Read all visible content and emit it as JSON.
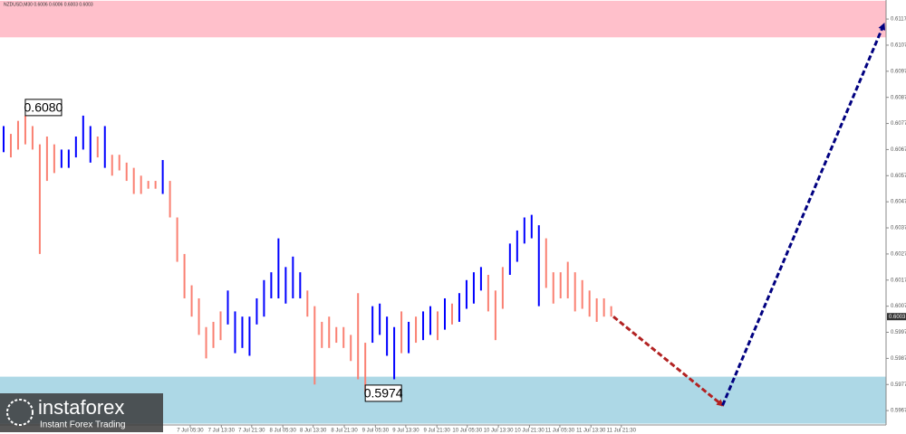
{
  "chart_data": {
    "type": "range-bars",
    "title": "NZDUSD,M30 0.6006 0.6006 0.6003 0.6003",
    "high": [
      0.6076,
      0.6073,
      0.6078,
      0.608,
      0.6076,
      0.6069,
      0.6072,
      0.6069,
      0.6067,
      0.6067,
      0.6072,
      0.608,
      0.6076,
      0.6072,
      0.6076,
      0.6065,
      0.6065,
      0.6062,
      0.606,
      0.6057,
      0.6055,
      0.6055,
      0.6063,
      0.6055,
      0.6041,
      0.6027,
      0.6015,
      0.601,
      0.5999,
      0.6001,
      0.6005,
      0.6013,
      0.6005,
      0.6003,
      0.6003,
      0.601,
      0.6017,
      0.602,
      0.6033,
      0.6022,
      0.6026,
      0.602,
      0.6013,
      0.6007,
      0.6001,
      0.6003,
      0.5999,
      0.5999,
      0.5996,
      0.6012,
      0.5993,
      0.6007,
      0.6008,
      0.6003,
      0.5999,
      0.6005,
      0.6001,
      0.6003,
      0.6005,
      0.6007,
      0.6005,
      0.601,
      0.6008,
      0.6012,
      0.6017,
      0.602,
      0.6022,
      0.6019,
      0.6013,
      0.6022,
      0.6031,
      0.6036,
      0.6041,
      0.6042,
      0.6038,
      0.6033,
      0.602,
      0.602,
      0.6024,
      0.602,
      0.6017,
      0.6013,
      0.601,
      0.601,
      0.6007
    ],
    "low": [
      0.6066,
      0.6064,
      0.6067,
      0.6069,
      0.6067,
      0.6027,
      0.6055,
      0.6058,
      0.606,
      0.606,
      0.6064,
      0.6067,
      0.6062,
      0.6064,
      0.606,
      0.6057,
      0.6059,
      0.6055,
      0.605,
      0.605,
      0.6052,
      0.6052,
      0.605,
      0.6041,
      0.6024,
      0.601,
      0.6003,
      0.5996,
      0.5987,
      0.5991,
      0.5994,
      0.6,
      0.5989,
      0.5991,
      0.5988,
      0.6,
      0.6003,
      0.601,
      0.601,
      0.6008,
      0.601,
      0.601,
      0.6003,
      0.5977,
      0.5991,
      0.5991,
      0.5993,
      0.5991,
      0.5986,
      0.5979,
      0.5974,
      0.5993,
      0.5996,
      0.5988,
      0.5979,
      0.5989,
      0.5989,
      0.5993,
      0.5994,
      0.5996,
      0.5994,
      0.5998,
      0.6,
      0.6001,
      0.6006,
      0.6008,
      0.6013,
      0.6005,
      0.5994,
      0.6006,
      0.6019,
      0.6024,
      0.6031,
      0.6033,
      0.6007,
      0.6014,
      0.6008,
      0.601,
      0.601,
      0.6005,
      0.6006,
      0.6003,
      0.6001,
      0.6003,
      0.6003
    ],
    "colors": [
      "#0000ff",
      "#fa8072",
      "#fa8072",
      "#fa8072",
      "#fa8072",
      "#fa8072",
      "#fa8072",
      "#fa8072",
      "#0000ff",
      "#0000ff",
      "#0000ff",
      "#0000ff",
      "#0000ff",
      "#fa8072",
      "#0000ff",
      "#fa8072",
      "#fa8072",
      "#fa8072",
      "#fa8072",
      "#fa8072",
      "#fa8072",
      "#fa8072",
      "#0000ff",
      "#fa8072",
      "#fa8072",
      "#fa8072",
      "#fa8072",
      "#fa8072",
      "#fa8072",
      "#fa8072",
      "#fa8072",
      "#0000ff",
      "#0000ff",
      "#0000ff",
      "#0000ff",
      "#0000ff",
      "#0000ff",
      "#0000ff",
      "#0000ff",
      "#0000ff",
      "#0000ff",
      "#0000ff",
      "#fa8072",
      "#fa8072",
      "#fa8072",
      "#fa8072",
      "#fa8072",
      "#fa8072",
      "#fa8072",
      "#fa8072",
      "#fa8072",
      "#0000ff",
      "#0000ff",
      "#0000ff",
      "#0000ff",
      "#fa8072",
      "#0000ff",
      "#fa8072",
      "#0000ff",
      "#0000ff",
      "#fa8072",
      "#0000ff",
      "#fa8072",
      "#0000ff",
      "#0000ff",
      "#0000ff",
      "#0000ff",
      "#fa8072",
      "#fa8072",
      "#fa8072",
      "#0000ff",
      "#0000ff",
      "#0000ff",
      "#0000ff",
      "#0000ff",
      "#fa8072",
      "#fa8072",
      "#fa8072",
      "#fa8072",
      "#fa8072",
      "#fa8072",
      "#fa8072",
      "#fa8072",
      "#fa8072",
      "#fa8072"
    ],
    "zones": [
      {
        "from": 0.611,
        "to": 0.6124,
        "color": "#ffc0cb"
      },
      {
        "from": 0.5962,
        "to": 0.598,
        "color": "#add8e6"
      }
    ],
    "arrows": [
      {
        "x": [
          84.8,
          99.9
        ],
        "y": [
          0.6003,
          0.5969
        ],
        "color": "#b22222"
      },
      {
        "x": [
          99.9,
          122.2
        ],
        "y": [
          0.5969,
          0.6115
        ],
        "color": "#000080"
      }
    ],
    "annotations": [
      {
        "x": 3.5,
        "value": 0.608,
        "label": "0.6080"
      },
      {
        "x": 50.5,
        "value": 0.5974,
        "label": "0.5974"
      }
    ],
    "current_price": 0.6003,
    "xlim": [
      0,
      122.5
    ],
    "ylim": [
      0.59615,
      0.61243
    ],
    "xticks": [
      {
        "value": 26.3,
        "label": "7 Jul 05:30"
      },
      {
        "value": 30.6,
        "label": "7 Jul 13:30"
      },
      {
        "value": 34.8,
        "label": "7 Jul 21:30"
      },
      {
        "value": 39.1,
        "label": "8 Jul 05:30"
      },
      {
        "value": 43.3,
        "label": "8 Jul 13:30"
      },
      {
        "value": 47.6,
        "label": "8 Jul 21:30"
      },
      {
        "value": 51.9,
        "label": "9 Jul 05:30"
      },
      {
        "value": 56.1,
        "label": "9 Jul 13:30"
      },
      {
        "value": 60.4,
        "label": "9 Jul 21:30"
      },
      {
        "value": 64.6,
        "label": "10 Jul 05:30"
      },
      {
        "value": 68.9,
        "label": "10 Jul 13:30"
      },
      {
        "value": 73.2,
        "label": "10 Jul 21:30"
      },
      {
        "value": 77.4,
        "label": "11 Jul 05:30"
      },
      {
        "value": 81.7,
        "label": "11 Jul 13:30"
      },
      {
        "value": 85.9,
        "label": "11 Jul 21:30"
      }
    ],
    "yticks": [
      0.5967,
      0.5977,
      0.5987,
      0.5997,
      0.6007,
      0.6017,
      0.6027,
      0.6037,
      0.6047,
      0.6057,
      0.6067,
      0.6077,
      0.6087,
      0.6097,
      0.6107,
      0.6117
    ]
  },
  "logo": {
    "name": "instaforex",
    "tagline": "Instant Forex Trading"
  }
}
